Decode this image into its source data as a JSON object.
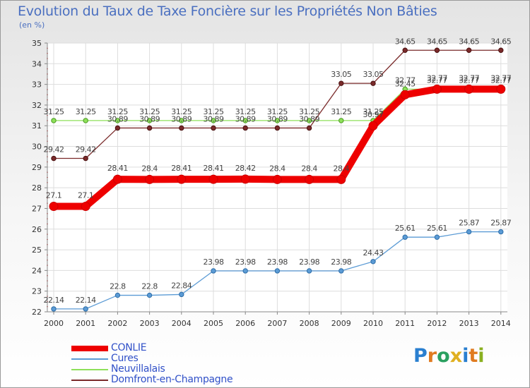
{
  "chart_data": {
    "type": "line",
    "title": "Evolution du Taux de Taxe Foncière sur les Propriétés Non Bâties",
    "ylabel": "(en %)",
    "xlabel": "",
    "ylim": [
      22,
      35
    ],
    "yticks": [
      22,
      23,
      24,
      25,
      26,
      27,
      28,
      29,
      30,
      31,
      32,
      33,
      34,
      35
    ],
    "grid": true,
    "x": [
      "2000",
      "2001",
      "2002",
      "2003",
      "2004",
      "2005",
      "2006",
      "2007",
      "2008",
      "2009",
      "2010",
      "2011",
      "2012",
      "2013",
      "2014"
    ],
    "series": [
      {
        "name": "CONLIE",
        "color": "#ee0000",
        "values": [
          27.1,
          27.1,
          28.41,
          28.4,
          28.41,
          28.41,
          28.42,
          28.4,
          28.4,
          28.4,
          31.0,
          32.5,
          32.77,
          32.77,
          32.77
        ],
        "labels": [
          "27.1",
          "27.1",
          "28.41",
          "28.4",
          "28.41",
          "28.41",
          "28.42",
          "28.4",
          "28.4",
          "28.4",
          "30.97",
          "32.45",
          "32.77",
          "32.77",
          "32.77"
        ]
      },
      {
        "name": "Cures",
        "color": "#5b9bd5",
        "values": [
          22.14,
          22.14,
          22.8,
          22.8,
          22.84,
          23.98,
          23.98,
          23.98,
          23.98,
          23.98,
          24.43,
          25.61,
          25.61,
          25.87,
          25.87
        ],
        "labels": [
          "22.14",
          "22.14",
          "22.8",
          "22.8",
          "22.84",
          "23.98",
          "23.98",
          "23.98",
          "23.98",
          "23.98",
          "24.43",
          "25.61",
          "25.61",
          "25.87",
          "25.87"
        ]
      },
      {
        "name": "Neuvillalais",
        "color": "#8ee05a",
        "values": [
          31.25,
          31.25,
          31.25,
          31.25,
          31.25,
          31.25,
          31.25,
          31.25,
          31.25,
          31.25,
          31.25,
          32.77,
          32.77,
          32.77,
          32.77
        ],
        "labels": [
          "31.25",
          "31.25",
          "31.25",
          "31.25",
          "31.25",
          "31.25",
          "31.25",
          "31.25",
          "31.25",
          "31.25",
          "31.25",
          "32.77",
          "32.77",
          "32.77",
          "32.77"
        ]
      },
      {
        "name": "Domfront-en-Champagne",
        "color": "#7a2a2a",
        "values": [
          29.42,
          29.42,
          30.89,
          30.89,
          30.89,
          30.89,
          30.89,
          30.89,
          30.89,
          33.05,
          33.05,
          34.65,
          34.65,
          34.65,
          34.65
        ],
        "labels": [
          "29.42",
          "29.42",
          "30.89",
          "30.89",
          "30.89",
          "30.89",
          "30.89",
          "30.89",
          "30.89",
          "33.05",
          "33.05",
          "34.65",
          "34.65",
          "34.65",
          "34.65"
        ]
      }
    ]
  },
  "logo": {
    "letters": [
      "P",
      "r",
      "o",
      "x",
      "i",
      "t",
      "i"
    ],
    "colors": [
      "#2a7fd0",
      "#e07b20",
      "#2aa060",
      "#e0b020",
      "#2a7fd0",
      "#e07b20",
      "#8ab020"
    ]
  }
}
